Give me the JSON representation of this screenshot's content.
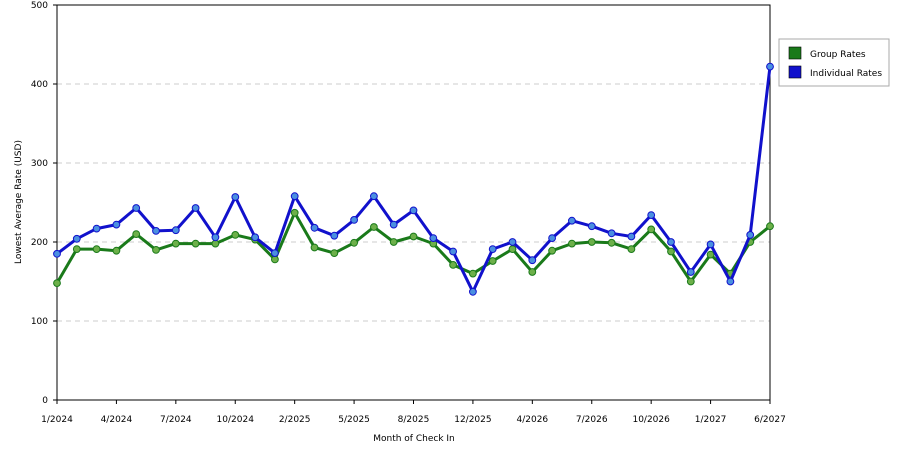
{
  "chart_data": {
    "type": "line",
    "title": "",
    "xlabel": "Month of Check In",
    "ylabel": "Lowest Average Rate (USD)",
    "ylim": [
      0,
      500
    ],
    "yticks": [
      "0",
      "100",
      "200",
      "300",
      "400",
      "500"
    ],
    "xticks": [
      {
        "index": 0,
        "label": "1/2024"
      },
      {
        "index": 3,
        "label": "4/2024"
      },
      {
        "index": 6,
        "label": "7/2024"
      },
      {
        "index": 9,
        "label": "10/2024"
      },
      {
        "index": 12,
        "label": "2/2025"
      },
      {
        "index": 15,
        "label": "5/2025"
      },
      {
        "index": 18,
        "label": "8/2025"
      },
      {
        "index": 21,
        "label": "12/2025"
      },
      {
        "index": 24,
        "label": "4/2026"
      },
      {
        "index": 27,
        "label": "7/2026"
      },
      {
        "index": 30,
        "label": "10/2026"
      },
      {
        "index": 33,
        "label": "1/2027"
      },
      {
        "index": 36,
        "label": "6/2027"
      }
    ],
    "grid": true,
    "legend_position": "right",
    "series": [
      {
        "name": "Group Rates",
        "color": "#1a7a1a",
        "marker_color": "#6db04a",
        "values": [
          148,
          191,
          191,
          189,
          210,
          190,
          198,
          198,
          198,
          209,
          203,
          178,
          237,
          193,
          186,
          199,
          219,
          200,
          207,
          198,
          171,
          160,
          176,
          191,
          162,
          189,
          198,
          200,
          199,
          191,
          216,
          188,
          150,
          184,
          160,
          200,
          220
        ]
      },
      {
        "name": "Individual Rates",
        "color": "#1111cc",
        "marker_color": "#4a8fe0",
        "values": [
          185,
          204,
          217,
          222,
          243,
          214,
          215,
          243,
          206,
          257,
          206,
          186,
          258,
          218,
          208,
          228,
          258,
          222,
          240,
          205,
          188,
          137,
          191,
          200,
          177,
          205,
          227,
          220,
          211,
          207,
          234,
          200,
          162,
          197,
          150,
          209,
          422
        ]
      }
    ]
  }
}
